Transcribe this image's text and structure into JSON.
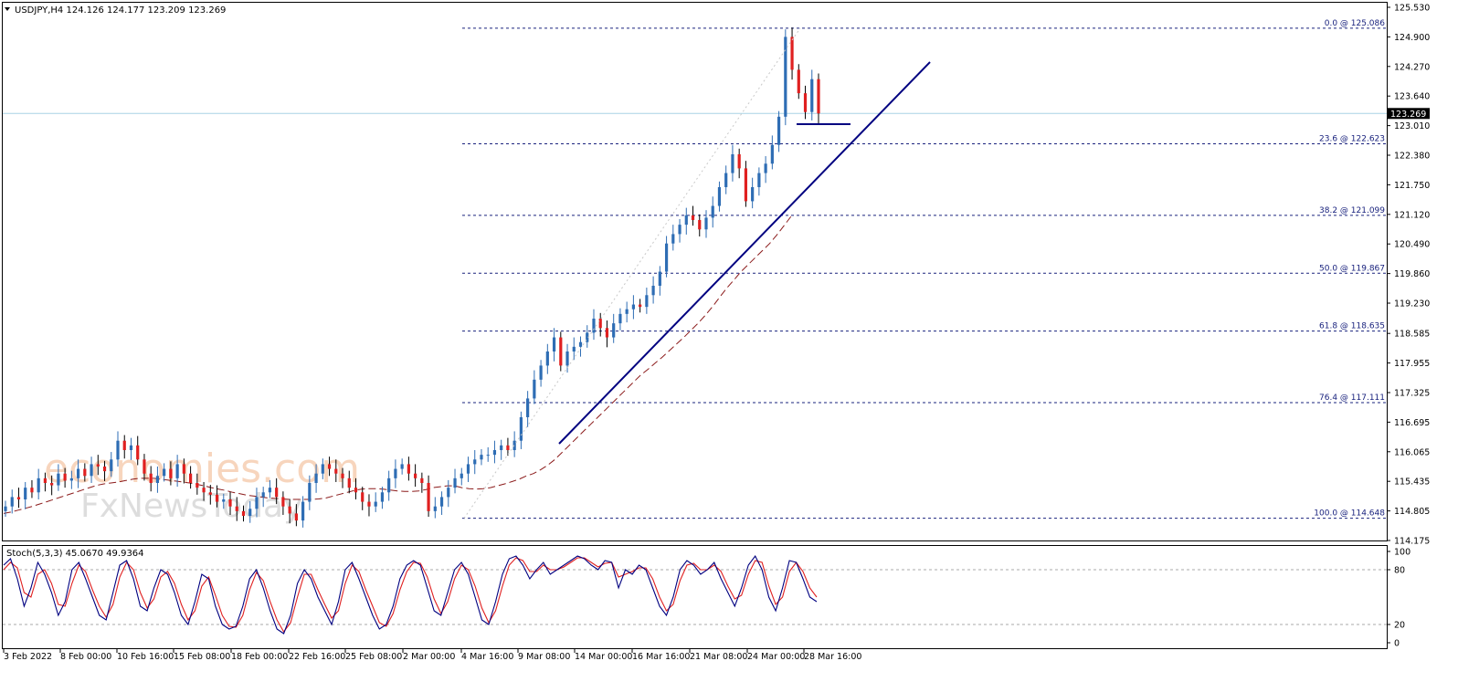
{
  "chart_data": {
    "type": "candlestick",
    "header": "USDJPY,H4  124.126 124.177 123.209 123.269",
    "last_price": 123.269,
    "last_price_label": "123.269",
    "ylim": [
      114.175,
      125.53
    ],
    "y_ticks": [
      "125.530",
      "124.900",
      "124.270",
      "123.640",
      "123.010",
      "122.380",
      "121.750",
      "121.120",
      "120.490",
      "119.860",
      "119.230",
      "118.585",
      "117.955",
      "117.325",
      "116.695",
      "116.065",
      "115.435",
      "114.805",
      "114.175"
    ],
    "x_ticks": [
      "3 Feb 2022",
      "8 Feb 00:00",
      "10 Feb 16:00",
      "15 Feb 08:00",
      "18 Feb 00:00",
      "22 Feb 16:00",
      "25 Feb 08:00",
      "2 Mar 00:00",
      "4 Mar 16:00",
      "9 Mar 08:00",
      "14 Mar 00:00",
      "16 Mar 16:00",
      "21 Mar 08:00",
      "24 Mar 00:00",
      "28 Mar 16:00"
    ],
    "fibonacci": [
      {
        "label": "0.0 @ 125.086",
        "value": 125.086
      },
      {
        "label": "23.6 @ 122.623",
        "value": 122.623
      },
      {
        "label": "38.2 @ 121.099",
        "value": 121.099
      },
      {
        "label": "50.0 @ 119.867",
        "value": 119.867
      },
      {
        "label": "61.8 @ 118.635",
        "value": 118.635
      },
      {
        "label": "76.4 @ 117.111",
        "value": 117.111
      },
      {
        "label": "100.0 @ 114.648",
        "value": 114.648
      }
    ],
    "series": [
      {
        "values": [
          114.9,
          115.1,
          115.05,
          115.3,
          115.2,
          115.5,
          115.4,
          115.35,
          115.6,
          115.45,
          115.5,
          115.7,
          115.55,
          115.8,
          115.75,
          115.65,
          115.9,
          116.3,
          116.1,
          116.2,
          115.9,
          115.6,
          115.4,
          115.55,
          115.7,
          115.5,
          115.8,
          115.6,
          115.4,
          115.3,
          115.2,
          115.15,
          115.0,
          115.05,
          114.9,
          114.8,
          114.7,
          114.85,
          115.1,
          115.2,
          115.3,
          115.1,
          114.9,
          114.75,
          114.6,
          115.0,
          115.4,
          115.6,
          115.8,
          115.7,
          115.6,
          115.5,
          115.3,
          115.2,
          115.0,
          114.9,
          115.0,
          115.2,
          115.5,
          115.7,
          115.8,
          115.6,
          115.5,
          115.4,
          114.8,
          114.9,
          115.1,
          115.3,
          115.5,
          115.6,
          115.8,
          115.9,
          116.0,
          116.0,
          116.1,
          116.2,
          116.1,
          116.3,
          116.8,
          117.2,
          117.6,
          117.9,
          118.2,
          118.5,
          117.9,
          118.2,
          118.3,
          118.4,
          118.6,
          118.9,
          118.7,
          118.5,
          118.8,
          119.0,
          119.1,
          119.2,
          119.15,
          119.4,
          119.6,
          119.9,
          120.5,
          120.7,
          120.9,
          121.1,
          121.0,
          120.8,
          121.05,
          121.3,
          121.7,
          122.0,
          122.4,
          122.1,
          121.4,
          121.7,
          122.0,
          122.2,
          122.6,
          123.2,
          124.9,
          124.2,
          123.7,
          123.3,
          124.0,
          123.269
        ],
        "name": ""
      }
    ],
    "moving_average": [
      114.75,
      114.78,
      114.82,
      114.86,
      114.9,
      114.95,
      115.0,
      115.05,
      115.1,
      115.15,
      115.2,
      115.25,
      115.3,
      115.35,
      115.38,
      115.4,
      115.42,
      115.45,
      115.48,
      115.5,
      115.5,
      115.5,
      115.48,
      115.46,
      115.44,
      115.42,
      115.4,
      115.37,
      115.34,
      115.3,
      115.27,
      115.24,
      115.2,
      115.17,
      115.14,
      115.12,
      115.1,
      115.08,
      115.07,
      115.06,
      115.05,
      115.05,
      115.05,
      115.05,
      115.06,
      115.08,
      115.12,
      115.16,
      115.2,
      115.24,
      115.27,
      115.28,
      115.28,
      115.27,
      115.25,
      115.23,
      115.22,
      115.22,
      115.23,
      115.26,
      115.3,
      115.32,
      115.34,
      115.34,
      115.3,
      115.28,
      115.27,
      115.28,
      115.3,
      115.34,
      115.38,
      115.43,
      115.48,
      115.55,
      115.6,
      115.68,
      115.78,
      115.9,
      116.05,
      116.2,
      116.35,
      116.5,
      116.65,
      116.8,
      116.95,
      117.1,
      117.25,
      117.4,
      117.55,
      117.7,
      117.82,
      117.95,
      118.08,
      118.22,
      118.36,
      118.5,
      118.65,
      118.8,
      118.97,
      119.15,
      119.35,
      119.55,
      119.72,
      119.9,
      120.05,
      120.2,
      120.35,
      120.5,
      120.68,
      120.88,
      121.08
    ],
    "stoch_header": "Stoch(5,3,3) 45.0670 49.9364",
    "stoch_levels": [
      "100",
      "80",
      "20",
      "0"
    ],
    "stoch_k": [
      85,
      92,
      70,
      40,
      60,
      88,
      75,
      55,
      30,
      45,
      80,
      88,
      70,
      50,
      30,
      25,
      55,
      85,
      90,
      70,
      40,
      35,
      60,
      80,
      75,
      55,
      30,
      20,
      45,
      75,
      70,
      40,
      20,
      15,
      18,
      40,
      70,
      80,
      60,
      35,
      15,
      10,
      30,
      65,
      80,
      70,
      50,
      35,
      20,
      45,
      80,
      88,
      70,
      50,
      30,
      15,
      20,
      40,
      70,
      85,
      90,
      85,
      60,
      35,
      30,
      55,
      80,
      88,
      75,
      50,
      25,
      20,
      45,
      75,
      92,
      95,
      85,
      70,
      80,
      88,
      75,
      80,
      85,
      90,
      95,
      92,
      85,
      80,
      90,
      88,
      60,
      80,
      75,
      85,
      80,
      60,
      40,
      30,
      50,
      80,
      90,
      85,
      75,
      80,
      88,
      70,
      55,
      40,
      60,
      85,
      95,
      80,
      50,
      35,
      60,
      90,
      88,
      70,
      50,
      45
    ],
    "stoch_d": [
      80,
      88,
      82,
      55,
      50,
      75,
      80,
      65,
      42,
      40,
      65,
      85,
      78,
      58,
      40,
      28,
      42,
      72,
      88,
      80,
      55,
      38,
      48,
      72,
      78,
      65,
      42,
      25,
      35,
      62,
      72,
      52,
      30,
      18,
      17,
      30,
      58,
      77,
      68,
      45,
      25,
      12,
      22,
      50,
      75,
      75,
      58,
      42,
      27,
      35,
      65,
      85,
      78,
      58,
      40,
      22,
      18,
      32,
      58,
      78,
      88,
      87,
      72,
      48,
      32,
      45,
      70,
      85,
      80,
      62,
      38,
      22,
      35,
      62,
      85,
      93,
      90,
      78,
      78,
      85,
      80,
      80,
      83,
      88,
      93,
      93,
      88,
      83,
      87,
      88,
      72,
      75,
      78,
      82,
      82,
      70,
      50,
      35,
      42,
      68,
      85,
      87,
      80,
      80,
      85,
      78,
      62,
      48,
      52,
      75,
      90,
      88,
      62,
      42,
      50,
      78,
      88,
      78,
      60,
      50
    ]
  }
}
